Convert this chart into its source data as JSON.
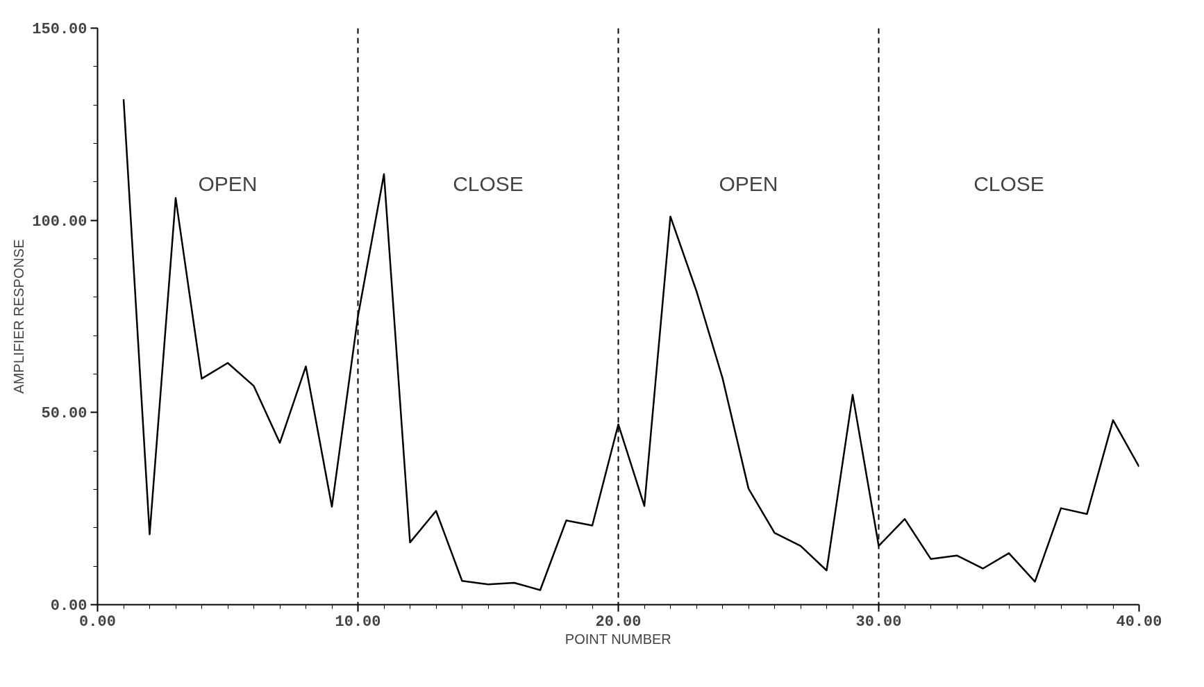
{
  "chart_data": {
    "type": "line",
    "xlabel": "POINT NUMBER",
    "ylabel": "AMPLIFIER RESPONSE",
    "x": [
      1,
      2,
      3,
      4,
      5,
      6,
      7,
      8,
      9,
      10,
      11,
      12,
      13,
      14,
      15,
      16,
      17,
      18,
      19,
      20,
      21,
      22,
      23,
      24,
      25,
      26,
      27,
      28,
      29,
      30,
      31,
      32,
      33,
      34,
      35,
      36,
      37,
      38,
      39,
      40
    ],
    "series": [
      {
        "color": "#000000",
        "values": [
          131.5,
          18.3,
          105.8,
          58.8,
          62.9,
          56.9,
          42.1,
          62.0,
          25.5,
          75.0,
          112.0,
          16.2,
          24.4,
          6.2,
          5.3,
          5.7,
          3.8,
          21.9,
          20.6,
          46.9,
          25.7,
          101.0,
          81.6,
          59.0,
          30.2,
          18.7,
          15.3,
          8.9,
          54.6,
          15.3,
          22.3,
          11.9,
          12.8,
          9.4,
          13.4,
          6.0,
          25.1,
          23.6,
          48.0,
          35.9
        ]
      }
    ],
    "xlim": [
      0,
      40
    ],
    "ylim": [
      0,
      150
    ],
    "xticks": [
      {
        "value": 0,
        "label": "0.00"
      },
      {
        "value": 10,
        "label": "10.00"
      },
      {
        "value": 20,
        "label": "20.00"
      },
      {
        "value": 30,
        "label": "30.00"
      },
      {
        "value": 40,
        "label": "40.00"
      }
    ],
    "yticks": [
      {
        "value": 0,
        "label": "0.00"
      },
      {
        "value": 50,
        "label": "50.00"
      },
      {
        "value": 100,
        "label": "100.00"
      },
      {
        "value": 150,
        "label": "150.00"
      }
    ],
    "ref_lines": [
      {
        "axis": "x",
        "value": 10,
        "line_style": "dashed",
        "color": "#000000"
      },
      {
        "axis": "x",
        "value": 20,
        "line_style": "dashed",
        "color": "#000000"
      },
      {
        "axis": "x",
        "value": 30,
        "line_style": "dashed",
        "color": "#000000"
      }
    ],
    "annotations": [
      "OPEN",
      "CLOSE",
      "OPEN",
      "CLOSE"
    ],
    "grid": false,
    "marker": "none",
    "line_style": "solid"
  }
}
